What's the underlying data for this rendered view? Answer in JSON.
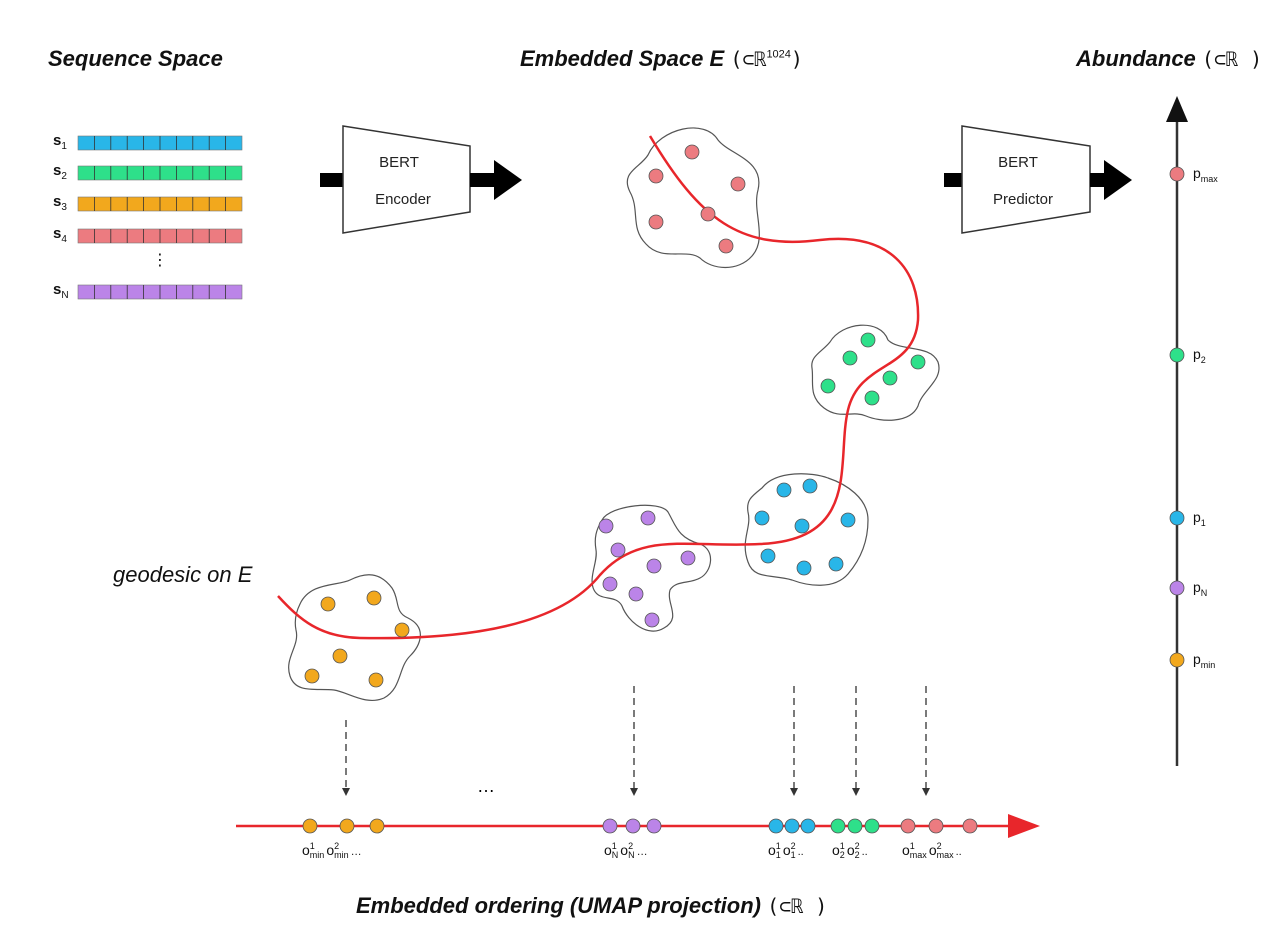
{
  "titles": {
    "sequence_space": "Sequence Space",
    "embedded_space": "Embedded Space E",
    "embedded_space_paren_open": "(⊂ℝ",
    "embedded_space_dim": "1024",
    "embedded_space_paren_close": ")",
    "abundance": "Abundance",
    "abundance_paren": "(⊂ℝ )",
    "ordering": "Embedded ordering (UMAP projection)",
    "ordering_paren": "(⊂ℝ )"
  },
  "sequences": [
    {
      "label": "s",
      "sub": "1",
      "color": "#29b6e8"
    },
    {
      "label": "s",
      "sub": "2",
      "color": "#2ee08a"
    },
    {
      "label": "s",
      "sub": "3",
      "color": "#f2a81d"
    },
    {
      "label": "s",
      "sub": "4",
      "color": "#ec7b80"
    },
    {
      "label": "s",
      "sub": "N",
      "color": "#bb84e8"
    }
  ],
  "vertical_ellipsis": "⋮",
  "encoder": {
    "line1": "BERT",
    "line2": "Encoder"
  },
  "predictor": {
    "line1": "BERT",
    "line2": "Predictor"
  },
  "geodesic_label": "geodesic on E",
  "abundance_points": [
    {
      "label": "p",
      "sub": "max",
      "color": "#ec7b80"
    },
    {
      "label": "p",
      "sub": "2",
      "color": "#2ee08a"
    },
    {
      "label": "p",
      "sub": "1",
      "color": "#29b6e8"
    },
    {
      "label": "p",
      "sub": "N",
      "color": "#bb84e8"
    },
    {
      "label": "p",
      "sub": "min",
      "color": "#f2a81d"
    }
  ],
  "ordering_ellipsis": "…",
  "ordering_labels": [
    {
      "parts": [
        {
          "b": "o",
          "sup": "1",
          "sub": "min"
        },
        {
          "b": "o",
          "sup": "2",
          "sub": "min"
        }
      ],
      "tail": "…"
    },
    {
      "parts": [
        {
          "b": "o",
          "sup": "1",
          "sub": "N"
        },
        {
          "b": "o",
          "sup": "2",
          "sub": "N"
        }
      ],
      "tail": "…"
    },
    {
      "parts": [
        {
          "b": "o",
          "sup": "1",
          "sub": "1"
        },
        {
          "b": "o",
          "sup": "2",
          "sub": "1"
        }
      ],
      "tail": ".."
    },
    {
      "parts": [
        {
          "b": "o",
          "sup": "1",
          "sub": "2"
        },
        {
          "b": "o",
          "sup": "2",
          "sub": "2"
        }
      ],
      "tail": ".."
    },
    {
      "parts": [
        {
          "b": "o",
          "sup": "1",
          "sub": "max"
        },
        {
          "b": "o",
          "sup": "2",
          "sub": "max"
        }
      ],
      "tail": ".."
    }
  ],
  "colors": {
    "blue": "#29b6e8",
    "green": "#2ee08a",
    "orange": "#f2a81d",
    "red": "#ec7b80",
    "purple": "#bb84e8",
    "curve": "#e8262b"
  }
}
